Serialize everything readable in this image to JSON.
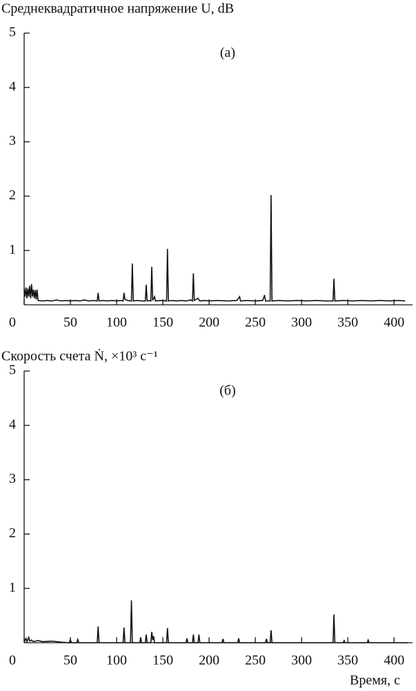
{
  "chart_data": [
    {
      "type": "line",
      "ylabel": "Среднеквадратичное напряжение U, dB",
      "annotation": "(a)",
      "xlim": [
        0,
        420
      ],
      "ylim": [
        0,
        5
      ],
      "xticks": [
        0,
        50,
        100,
        150,
        200,
        250,
        300,
        350,
        400
      ],
      "yticks": [
        1,
        2,
        3,
        4,
        5
      ],
      "x": [
        0,
        1,
        2,
        3,
        4,
        5,
        6,
        7,
        8,
        9,
        10,
        11,
        12,
        13,
        14,
        15,
        20,
        25,
        30,
        35,
        40,
        45,
        50,
        55,
        60,
        65,
        70,
        75,
        79,
        80,
        81,
        85,
        90,
        95,
        100,
        105,
        107,
        108,
        109,
        112,
        116,
        117,
        118,
        122,
        127,
        131,
        132,
        133,
        136,
        137,
        138,
        139,
        141,
        142,
        148,
        154,
        155,
        156,
        160,
        165,
        170,
        175,
        180,
        182,
        183,
        184,
        188,
        190,
        195,
        200,
        210,
        220,
        230,
        233,
        234,
        240,
        250,
        258,
        260,
        261,
        266,
        267,
        268,
        275,
        285,
        295,
        305,
        315,
        325,
        334,
        335,
        336,
        345,
        355,
        365,
        375,
        385,
        395,
        405,
        412
      ],
      "series": [
        {
          "color": "#111111",
          "values": [
            0.3,
            0.15,
            0.32,
            0.12,
            0.3,
            0.15,
            0.35,
            0.12,
            0.38,
            0.15,
            0.28,
            0.12,
            0.27,
            0.1,
            0.28,
            0.08,
            0.07,
            0.08,
            0.07,
            0.09,
            0.07,
            0.08,
            0.07,
            0.08,
            0.07,
            0.09,
            0.07,
            0.08,
            0.07,
            0.22,
            0.07,
            0.08,
            0.07,
            0.08,
            0.07,
            0.08,
            0.07,
            0.22,
            0.1,
            0.08,
            0.07,
            0.76,
            0.07,
            0.08,
            0.07,
            0.07,
            0.37,
            0.07,
            0.08,
            0.07,
            0.7,
            0.08,
            0.15,
            0.07,
            0.08,
            0.07,
            1.03,
            0.07,
            0.08,
            0.07,
            0.08,
            0.07,
            0.09,
            0.07,
            0.58,
            0.08,
            0.12,
            0.07,
            0.08,
            0.07,
            0.08,
            0.07,
            0.08,
            0.15,
            0.07,
            0.08,
            0.07,
            0.08,
            0.18,
            0.07,
            0.07,
            2.02,
            0.07,
            0.08,
            0.07,
            0.08,
            0.07,
            0.08,
            0.07,
            0.07,
            0.48,
            0.07,
            0.08,
            0.07,
            0.08,
            0.07,
            0.08,
            0.07,
            0.08,
            0.07
          ]
        }
      ]
    },
    {
      "type": "line",
      "ylabel": "Скорость счета Ṅ, ×10³ с⁻¹",
      "annotation": "(б)",
      "xlabel": "Время, с",
      "xlim": [
        0,
        420
      ],
      "ylim": [
        0,
        5
      ],
      "xticks": [
        0,
        50,
        100,
        150,
        200,
        250,
        300,
        350,
        400
      ],
      "yticks": [
        1,
        2,
        3,
        4,
        5
      ],
      "x": [
        0,
        1,
        2,
        3,
        4,
        5,
        6,
        8,
        10,
        15,
        20,
        30,
        40,
        49,
        50,
        51,
        57,
        58,
        59,
        79,
        80,
        81,
        107,
        108,
        109,
        115,
        116,
        117,
        125,
        126,
        127,
        131,
        132,
        133,
        137,
        138,
        139,
        140,
        141,
        154,
        155,
        156,
        175,
        176,
        177,
        182,
        183,
        184,
        188,
        189,
        190,
        214,
        215,
        216,
        231,
        232,
        233,
        261,
        262,
        263,
        266,
        267,
        268,
        334,
        335,
        336,
        345,
        346,
        347,
        371,
        372,
        373,
        415
      ],
      "series": [
        {
          "color": "#111111",
          "values": [
            0,
            0.05,
            0.08,
            0.02,
            0.06,
            0.1,
            0.03,
            0.05,
            0.02,
            0.04,
            0.02,
            0.03,
            0.01,
            0,
            0.06,
            0,
            0,
            0.06,
            0,
            0,
            0.3,
            0,
            0,
            0.28,
            0,
            0,
            0.78,
            0,
            0,
            0.1,
            0,
            0,
            0.15,
            0,
            0,
            0.2,
            0.05,
            0.12,
            0,
            0,
            0.27,
            0,
            0,
            0.08,
            0,
            0,
            0.15,
            0,
            0,
            0.15,
            0,
            0,
            0.07,
            0,
            0,
            0.08,
            0,
            0,
            0.07,
            0,
            0,
            0.23,
            0,
            0,
            0.52,
            0,
            0,
            0.04,
            0,
            0,
            0.05,
            0,
            0
          ]
        }
      ]
    }
  ]
}
